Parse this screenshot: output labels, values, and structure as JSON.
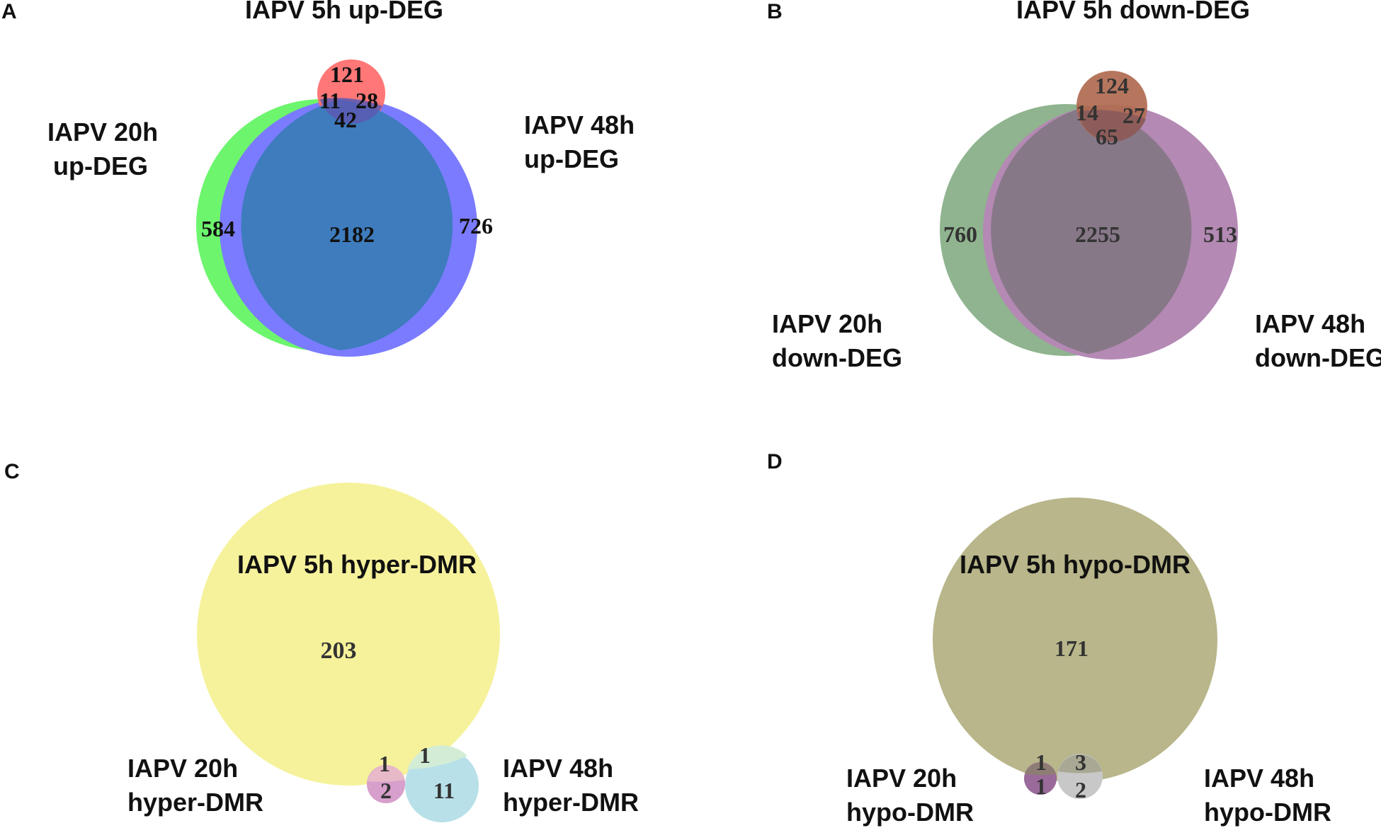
{
  "panels": {
    "A": {
      "letter": "A",
      "title": "IAPV 5h up-DEG",
      "left_label": [
        "IAPV 20h",
        "up-DEG"
      ],
      "right_label": [
        "IAPV 48h",
        "up-DEG"
      ],
      "counts": {
        "only_5h": "121",
        "5h_20h": "11",
        "5h_48h": "28",
        "all_three": "42",
        "only_20h": "584",
        "20h_48h": "2182",
        "only_48h": "726"
      },
      "colors": {
        "5h": "#ff6b6b",
        "20h": "#6df56d",
        "48h": "#7b7bff",
        "overlap": "#3e7cbd"
      }
    },
    "B": {
      "letter": "B",
      "title": "IAPV 5h down-DEG",
      "left_label": [
        "IAPV 20h",
        "down-DEG"
      ],
      "right_label": [
        "IAPV 48h",
        "down-DEG"
      ],
      "counts": {
        "only_5h": "124",
        "5h_20h": "14",
        "5h_48h": "27",
        "all_three": "65",
        "only_20h": "760",
        "20h_48h": "2255",
        "only_48h": "513"
      },
      "colors": {
        "5h": "#b06a50",
        "20h": "#8fb48f",
        "48h": "#b489b4",
        "overlap": "#877888"
      }
    },
    "C": {
      "letter": "C",
      "big_label": "IAPV 5h hyper-DMR",
      "left_label": [
        "IAPV 20h",
        "hyper-DMR"
      ],
      "right_label": [
        "IAPV 48h",
        "hyper-DMR"
      ],
      "counts": {
        "only_5h": "203",
        "5h_20h": "1",
        "only_20h": "2",
        "5h_48h": "1",
        "only_48h": "11"
      },
      "colors": {
        "5h": "#f6f29b",
        "20h": "#d79fcb",
        "48h": "#b8e0e8"
      }
    },
    "D": {
      "letter": "D",
      "big_label": "IAPV 5h hypo-DMR",
      "left_label": [
        "IAPV 20h",
        "hypo-DMR"
      ],
      "right_label": [
        "IAPV 48h",
        "hypo-DMR"
      ],
      "counts": {
        "only_5h": "171",
        "5h_20h": "1",
        "only_20h": "1",
        "5h_48h": "3",
        "only_48h": "2"
      },
      "colors": {
        "5h": "#b8b68a",
        "20h": "#9a6a9a",
        "48h": "#c8c8c8"
      }
    }
  }
}
